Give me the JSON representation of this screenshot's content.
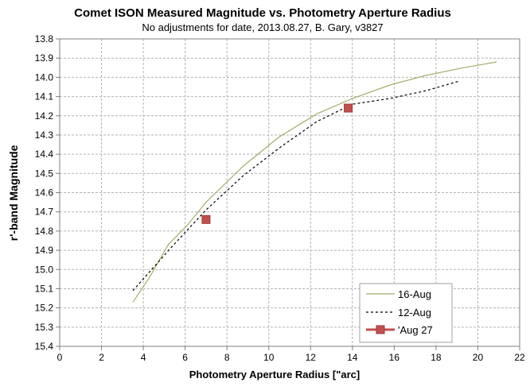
{
  "chart_data": {
    "type": "line",
    "title": "Comet ISON Measured Magnitude vs. Photometry Aperture Radius",
    "subtitle": "No adjustments for date, 2013.08.27, B. Gary, v3827",
    "xlabel": "Photometry Aperture Radius [\"arc]",
    "ylabel": "r'-band Magnitude",
    "xlim": [
      0,
      22
    ],
    "ylim": [
      13.8,
      15.4
    ],
    "y_inverted": true,
    "grid": true,
    "legend_position": "bottom-right",
    "x_ticks": [
      0,
      2,
      4,
      6,
      8,
      10,
      12,
      14,
      16,
      18,
      20,
      22
    ],
    "x_tick_labels": [
      "0",
      "2",
      "4",
      "6",
      "8",
      "10",
      "12",
      "14",
      "16",
      "18",
      "20",
      "22"
    ],
    "y_ticks": [
      13.8,
      13.9,
      14.0,
      14.1,
      14.2,
      14.3,
      14.4,
      14.5,
      14.6,
      14.7,
      14.8,
      14.9,
      15.0,
      15.1,
      15.2,
      15.3,
      15.4
    ],
    "y_tick_labels": [
      "13.8",
      "13.9",
      "14.0",
      "14.1",
      "14.2",
      "14.3",
      "14.4",
      "14.5",
      "14.6",
      "14.7",
      "14.8",
      "14.9",
      "15.0",
      "15.1",
      "15.2",
      "15.3",
      "15.4"
    ],
    "series": [
      {
        "name": "16-Aug",
        "color": "#a5ad6b",
        "style": "solid",
        "marker": "none",
        "x": [
          3.5,
          4.3,
          5.2,
          6.1,
          7.0,
          8.8,
          10.5,
          12.3,
          14.0,
          15.8,
          17.5,
          19.3,
          20.9
        ],
        "y": [
          15.17,
          15.04,
          14.87,
          14.77,
          14.65,
          14.46,
          14.31,
          14.19,
          14.11,
          14.04,
          13.99,
          13.95,
          13.92
        ]
      },
      {
        "name": "12-Aug",
        "color": "#000000",
        "style": "dashed",
        "marker": "none",
        "x": [
          3.5,
          5.3,
          7.0,
          8.8,
          10.6,
          12.3,
          14.0,
          15.8,
          17.5,
          19.1
        ],
        "y": [
          15.11,
          14.89,
          14.69,
          14.51,
          14.36,
          14.23,
          14.14,
          14.11,
          14.07,
          14.02
        ]
      },
      {
        "name": "'Aug 27",
        "color": "#c0504d",
        "style": "none",
        "marker": "square",
        "x": [
          7.0,
          13.8
        ],
        "y": [
          14.74,
          14.16
        ]
      }
    ]
  }
}
